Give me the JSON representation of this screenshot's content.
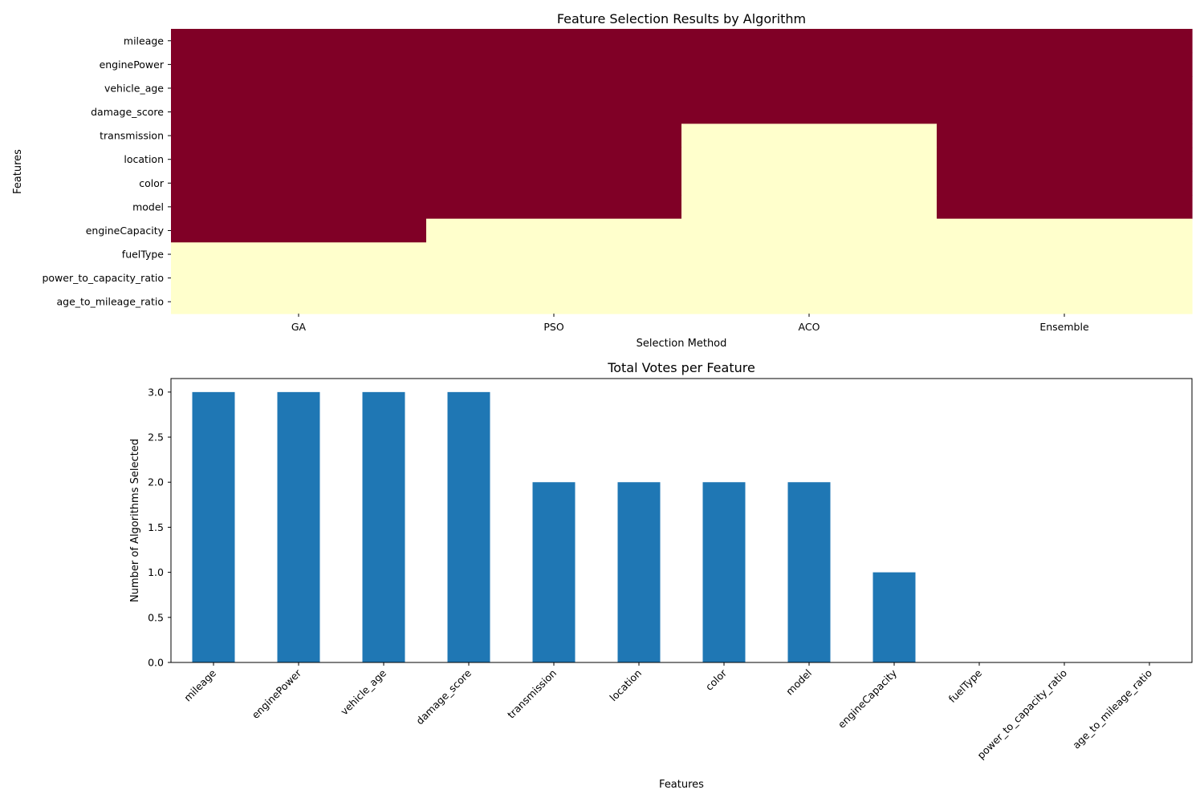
{
  "chart_data": [
    {
      "type": "heatmap",
      "title": "Feature Selection Results by Algorithm",
      "xlabel": "Selection Method",
      "ylabel": "Features",
      "x_categories": [
        "GA",
        "PSO",
        "ACO",
        "Ensemble"
      ],
      "y_categories": [
        "mileage",
        "enginePower",
        "vehicle_age",
        "damage_score",
        "transmission",
        "location",
        "color",
        "model",
        "engineCapacity",
        "fuelType",
        "power_to_capacity_ratio",
        "age_to_mileage_ratio"
      ],
      "values": [
        [
          1,
          1,
          1,
          1
        ],
        [
          1,
          1,
          1,
          1
        ],
        [
          1,
          1,
          1,
          1
        ],
        [
          1,
          1,
          1,
          1
        ],
        [
          1,
          1,
          0,
          1
        ],
        [
          1,
          1,
          0,
          1
        ],
        [
          1,
          1,
          0,
          1
        ],
        [
          1,
          1,
          0,
          1
        ],
        [
          1,
          0,
          0,
          0
        ],
        [
          0,
          0,
          0,
          0
        ],
        [
          0,
          0,
          0,
          0
        ],
        [
          0,
          0,
          0,
          0
        ]
      ],
      "colormap": {
        "selected": "#800026",
        "not_selected": "#ffffcc"
      }
    },
    {
      "type": "bar",
      "title": "Total Votes per Feature",
      "xlabel": "Features",
      "ylabel": "Number of Algorithms Selected",
      "categories": [
        "mileage",
        "enginePower",
        "vehicle_age",
        "damage_score",
        "transmission",
        "location",
        "color",
        "model",
        "engineCapacity",
        "fuelType",
        "power_to_capacity_ratio",
        "age_to_mileage_ratio"
      ],
      "values": [
        3,
        3,
        3,
        3,
        2,
        2,
        2,
        2,
        1,
        0,
        0,
        0
      ],
      "ylim": [
        0,
        3.15
      ],
      "yticks": [
        "0.0",
        "0.5",
        "1.0",
        "1.5",
        "2.0",
        "2.5",
        "3.0"
      ],
      "bar_color": "#1f77b4"
    }
  ]
}
